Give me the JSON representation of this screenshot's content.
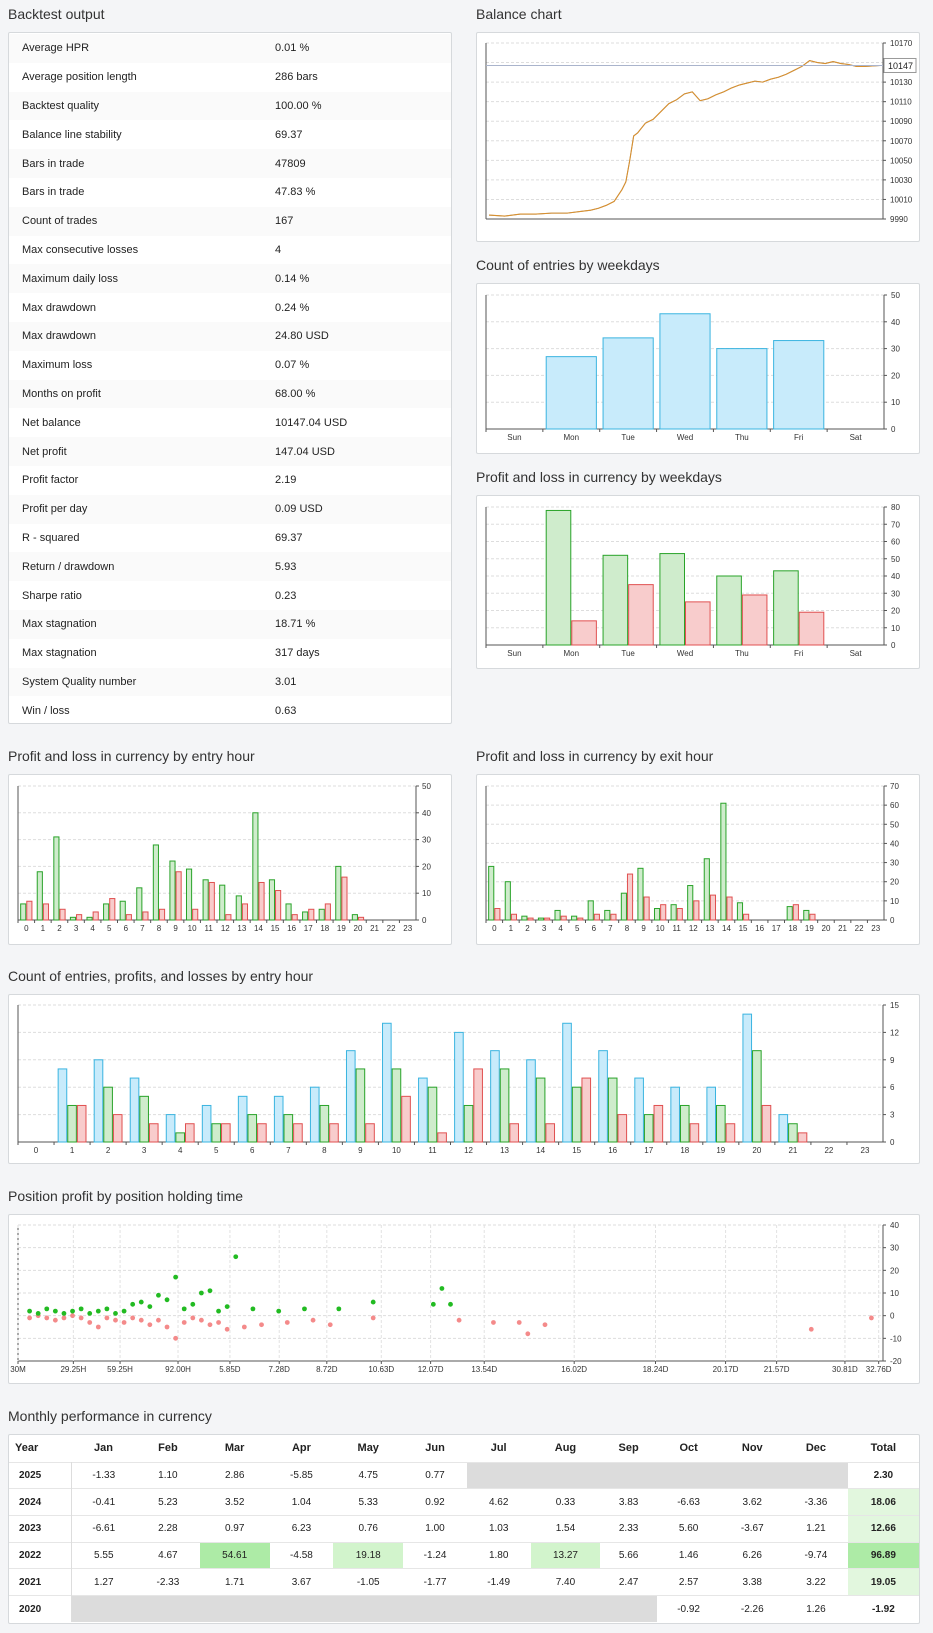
{
  "sections": {
    "backtest_output": "Backtest output",
    "balance_chart": "Balance chart",
    "entries_weekdays": "Count of entries by weekdays",
    "pl_weekdays": "Profit and loss in currency by weekdays",
    "pl_entry_hour": "Profit and loss in currency by entry hour",
    "pl_exit_hour": "Profit and loss in currency by exit hour",
    "count_entry_hour": "Count of entries, profits, and losses by entry hour",
    "position_profit": "Position profit by position holding time",
    "monthly": "Monthly performance in currency"
  },
  "stats": [
    {
      "label": "Average HPR",
      "value": "0.01 %"
    },
    {
      "label": "Average position length",
      "value": "286 bars"
    },
    {
      "label": "Backtest quality",
      "value": "100.00 %"
    },
    {
      "label": "Balance line stability",
      "value": "69.37"
    },
    {
      "label": "Bars in trade",
      "value": "47809"
    },
    {
      "label": "Bars in trade",
      "value": "47.83 %"
    },
    {
      "label": "Count of trades",
      "value": "167"
    },
    {
      "label": "Max consecutive losses",
      "value": "4"
    },
    {
      "label": "Maximum daily loss",
      "value": "0.14 %"
    },
    {
      "label": "Max drawdown",
      "value": "0.24 %"
    },
    {
      "label": "Max drawdown",
      "value": "24.80 USD"
    },
    {
      "label": "Maximum loss",
      "value": "0.07 %"
    },
    {
      "label": "Months on profit",
      "value": "68.00 %"
    },
    {
      "label": "Net balance",
      "value": "10147.04 USD"
    },
    {
      "label": "Net profit",
      "value": "147.04 USD"
    },
    {
      "label": "Profit factor",
      "value": "2.19"
    },
    {
      "label": "Profit per day",
      "value": "0.09 USD"
    },
    {
      "label": "R - squared",
      "value": "69.37"
    },
    {
      "label": "Return / drawdown",
      "value": "5.93"
    },
    {
      "label": "Sharpe ratio",
      "value": "0.23"
    },
    {
      "label": "Max stagnation",
      "value": "18.71 %"
    },
    {
      "label": "Max stagnation",
      "value": "317 days"
    },
    {
      "label": "System Quality number",
      "value": "3.01"
    },
    {
      "label": "Win / loss",
      "value": "0.63"
    }
  ],
  "colors": {
    "blue_fill": "#c8ebfb",
    "blue_stroke": "#3ab4e0",
    "green_fill": "#cfeccc",
    "green_stroke": "#29a329",
    "red_fill": "#f8cccc",
    "red_stroke": "#e05050",
    "win_dot": "#22bb22",
    "loss_dot": "#f48a8a",
    "balance_line": "#d8902f"
  },
  "chart_data": [
    {
      "id": "balance",
      "type": "line",
      "ylim": [
        9990,
        10170
      ],
      "yticks": [
        "10170",
        "10150",
        "10130",
        "10110",
        "10090",
        "10070",
        "10050",
        "10030",
        "10010",
        "9990"
      ],
      "last_value_label": "10147",
      "points": [
        [
          0,
          9994
        ],
        [
          0.04,
          9993
        ],
        [
          0.08,
          9995
        ],
        [
          0.12,
          9995
        ],
        [
          0.16,
          9996
        ],
        [
          0.2,
          9996
        ],
        [
          0.24,
          9998
        ],
        [
          0.26,
          9999
        ],
        [
          0.28,
          10001
        ],
        [
          0.3,
          10004
        ],
        [
          0.32,
          10008
        ],
        [
          0.33,
          10014
        ],
        [
          0.34,
          10020
        ],
        [
          0.35,
          10028
        ],
        [
          0.36,
          10050
        ],
        [
          0.37,
          10075
        ],
        [
          0.38,
          10078
        ],
        [
          0.39,
          10083
        ],
        [
          0.4,
          10088
        ],
        [
          0.42,
          10092
        ],
        [
          0.44,
          10100
        ],
        [
          0.46,
          10108
        ],
        [
          0.48,
          10112
        ],
        [
          0.5,
          10118
        ],
        [
          0.52,
          10120
        ],
        [
          0.54,
          10111
        ],
        [
          0.56,
          10113
        ],
        [
          0.58,
          10117
        ],
        [
          0.6,
          10120
        ],
        [
          0.62,
          10124
        ],
        [
          0.64,
          10127
        ],
        [
          0.66,
          10129
        ],
        [
          0.68,
          10131
        ],
        [
          0.7,
          10130
        ],
        [
          0.72,
          10133
        ],
        [
          0.74,
          10135
        ],
        [
          0.76,
          10138
        ],
        [
          0.78,
          10142
        ],
        [
          0.8,
          10146
        ],
        [
          0.82,
          10152
        ],
        [
          0.84,
          10150
        ],
        [
          0.86,
          10149
        ],
        [
          0.88,
          10151
        ],
        [
          0.9,
          10149
        ],
        [
          0.92,
          10148
        ],
        [
          0.94,
          10146
        ],
        [
          0.96,
          10146
        ],
        [
          1,
          10147
        ]
      ]
    },
    {
      "id": "entries_weekdays",
      "type": "bar",
      "categories": [
        "Sun",
        "Mon",
        "Tue",
        "Wed",
        "Thu",
        "Fri",
        "Sat"
      ],
      "values": [
        0,
        27,
        34,
        43,
        30,
        33,
        0
      ],
      "ylim": [
        0,
        50
      ],
      "yticks": [
        "0",
        "10",
        "20",
        "30",
        "40",
        "50"
      ]
    },
    {
      "id": "pl_weekdays",
      "type": "bar",
      "categories": [
        "Sun",
        "Mon",
        "Tue",
        "Wed",
        "Thu",
        "Fri",
        "Sat"
      ],
      "series": [
        {
          "values": [
            0,
            78,
            52,
            53,
            40,
            43,
            0
          ]
        },
        {
          "values": [
            0,
            14,
            35,
            25,
            29,
            19,
            0
          ]
        }
      ],
      "ylim": [
        0,
        80
      ],
      "yticks": [
        "0",
        "10",
        "20",
        "30",
        "40",
        "50",
        "60",
        "70",
        "80"
      ]
    },
    {
      "id": "pl_entry_hour",
      "type": "bar",
      "categories": [
        "0",
        "1",
        "2",
        "3",
        "4",
        "5",
        "6",
        "7",
        "8",
        "9",
        "10",
        "11",
        "12",
        "13",
        "14",
        "15",
        "16",
        "17",
        "18",
        "19",
        "20",
        "21",
        "22",
        "23"
      ],
      "series": [
        {
          "values": [
            6,
            18,
            31,
            1,
            1,
            6,
            7,
            12,
            28,
            22,
            19,
            15,
            13,
            9,
            40,
            15,
            6,
            3,
            4,
            20,
            2,
            0,
            0,
            0
          ]
        },
        {
          "values": [
            7,
            6,
            4,
            2,
            3,
            8,
            2,
            3,
            4,
            18,
            4,
            14,
            2,
            6,
            14,
            11,
            2,
            4,
            6,
            16,
            1,
            0,
            0,
            0
          ]
        }
      ],
      "ylim": [
        0,
        50
      ],
      "yticks": [
        "0",
        "10",
        "20",
        "30",
        "40",
        "50"
      ]
    },
    {
      "id": "pl_exit_hour",
      "type": "bar",
      "categories": [
        "0",
        "1",
        "2",
        "3",
        "4",
        "5",
        "6",
        "7",
        "8",
        "9",
        "10",
        "11",
        "12",
        "13",
        "14",
        "15",
        "16",
        "17",
        "18",
        "19",
        "20",
        "21",
        "22",
        "23"
      ],
      "series": [
        {
          "values": [
            28,
            20,
            2,
            1,
            5,
            2,
            10,
            5,
            14,
            27,
            6,
            8,
            18,
            32,
            61,
            9,
            0,
            0,
            7,
            5,
            0,
            0,
            0,
            0
          ]
        },
        {
          "values": [
            6,
            3,
            1,
            1,
            2,
            1,
            3,
            3,
            24,
            12,
            8,
            6,
            10,
            13,
            12,
            3,
            0,
            0,
            8,
            3,
            0,
            0,
            0,
            0
          ]
        }
      ],
      "ylim": [
        0,
        70
      ],
      "yticks": [
        "0",
        "10",
        "20",
        "30",
        "40",
        "50",
        "60",
        "70"
      ]
    },
    {
      "id": "count_entry_hour",
      "type": "bar",
      "categories": [
        "0",
        "1",
        "2",
        "3",
        "4",
        "5",
        "6",
        "7",
        "8",
        "9",
        "10",
        "11",
        "12",
        "13",
        "14",
        "15",
        "16",
        "17",
        "18",
        "19",
        "20",
        "21",
        "22",
        "23"
      ],
      "series": [
        {
          "values": [
            0,
            8,
            9,
            7,
            3,
            4,
            5,
            5,
            6,
            10,
            13,
            7,
            12,
            10,
            9,
            13,
            10,
            7,
            6,
            6,
            14,
            3,
            0,
            0
          ]
        },
        {
          "values": [
            0,
            4,
            6,
            5,
            1,
            2,
            3,
            3,
            4,
            8,
            8,
            6,
            4,
            8,
            7,
            6,
            7,
            3,
            4,
            4,
            10,
            2,
            0,
            0
          ]
        },
        {
          "values": [
            0,
            4,
            3,
            2,
            2,
            2,
            2,
            2,
            2,
            2,
            5,
            1,
            8,
            2,
            2,
            7,
            3,
            4,
            2,
            2,
            4,
            1,
            0,
            0
          ]
        }
      ],
      "ylim": [
        0,
        15
      ],
      "yticks": [
        "0",
        "3",
        "6",
        "9",
        "12",
        "15"
      ]
    },
    {
      "id": "position_profit",
      "type": "scatter",
      "ylim": [
        -20,
        40
      ],
      "yticks": [
        "-20",
        "-10",
        "0",
        "10",
        "20",
        "30",
        "40"
      ],
      "xticks": [
        "30M",
        "29.25H",
        "59.25H",
        "92.00H",
        "5.85D",
        "7.28D",
        "8.72D",
        "10.63D",
        "12.07D",
        "13.54D",
        "16.02D",
        "18.24D",
        "20.17D",
        "21.57D",
        "30.81D",
        "32.76D"
      ],
      "wins": [
        [
          0.01,
          2
        ],
        [
          0.02,
          1
        ],
        [
          0.03,
          3
        ],
        [
          0.04,
          2
        ],
        [
          0.05,
          1
        ],
        [
          0.06,
          2
        ],
        [
          0.07,
          3
        ],
        [
          0.08,
          1
        ],
        [
          0.09,
          2
        ],
        [
          0.1,
          3
        ],
        [
          0.11,
          1
        ],
        [
          0.12,
          2
        ],
        [
          0.13,
          5
        ],
        [
          0.14,
          6
        ],
        [
          0.15,
          4
        ],
        [
          0.16,
          9
        ],
        [
          0.17,
          7
        ],
        [
          0.18,
          17
        ],
        [
          0.19,
          3
        ],
        [
          0.2,
          5
        ],
        [
          0.21,
          10
        ],
        [
          0.22,
          11
        ],
        [
          0.23,
          2
        ],
        [
          0.24,
          4
        ],
        [
          0.25,
          26
        ],
        [
          0.27,
          3
        ],
        [
          0.3,
          2
        ],
        [
          0.33,
          3
        ],
        [
          0.37,
          3
        ],
        [
          0.41,
          6
        ],
        [
          0.48,
          5
        ],
        [
          0.49,
          12
        ],
        [
          0.5,
          5
        ]
      ],
      "losses": [
        [
          0.01,
          -1
        ],
        [
          0.02,
          0
        ],
        [
          0.03,
          -1
        ],
        [
          0.04,
          -2
        ],
        [
          0.05,
          -1
        ],
        [
          0.06,
          0
        ],
        [
          0.07,
          -1
        ],
        [
          0.08,
          -3
        ],
        [
          0.09,
          -5
        ],
        [
          0.1,
          -1
        ],
        [
          0.11,
          -2
        ],
        [
          0.12,
          -3
        ],
        [
          0.13,
          -1
        ],
        [
          0.14,
          -2
        ],
        [
          0.15,
          -4
        ],
        [
          0.16,
          -2
        ],
        [
          0.17,
          -5
        ],
        [
          0.18,
          -10
        ],
        [
          0.19,
          -3
        ],
        [
          0.2,
          -1
        ],
        [
          0.21,
          -2
        ],
        [
          0.22,
          -4
        ],
        [
          0.23,
          -3
        ],
        [
          0.24,
          -6
        ],
        [
          0.26,
          -5
        ],
        [
          0.28,
          -4
        ],
        [
          0.31,
          -3
        ],
        [
          0.34,
          -2
        ],
        [
          0.36,
          -4
        ],
        [
          0.41,
          -1
        ],
        [
          0.51,
          -2
        ],
        [
          0.55,
          -3
        ],
        [
          0.58,
          -3
        ],
        [
          0.59,
          -8
        ],
        [
          0.61,
          -4
        ],
        [
          0.92,
          -6
        ],
        [
          0.99,
          -1
        ]
      ]
    }
  ],
  "monthly": {
    "headers": [
      "Year",
      "Jan",
      "Feb",
      "Mar",
      "Apr",
      "May",
      "Jun",
      "Jul",
      "Aug",
      "Sep",
      "Oct",
      "Nov",
      "Dec",
      "Total"
    ],
    "rows": [
      {
        "year": "2025",
        "cells": [
          "-1.33",
          "1.10",
          "2.86",
          "-5.85",
          "4.75",
          "0.77",
          "",
          "",
          "",
          "",
          "",
          ""
        ],
        "total": "2.30"
      },
      {
        "year": "2024",
        "cells": [
          "-0.41",
          "5.23",
          "3.52",
          "1.04",
          "5.33",
          "0.92",
          "4.62",
          "0.33",
          "3.83",
          "-6.63",
          "3.62",
          "-3.36"
        ],
        "total": "18.06"
      },
      {
        "year": "2023",
        "cells": [
          "-6.61",
          "2.28",
          "0.97",
          "6.23",
          "0.76",
          "1.00",
          "1.03",
          "1.54",
          "2.33",
          "5.60",
          "-3.67",
          "1.21"
        ],
        "total": "12.66"
      },
      {
        "year": "2022",
        "cells": [
          "5.55",
          "4.67",
          "54.61",
          "-4.58",
          "19.18",
          "-1.24",
          "1.80",
          "13.27",
          "5.66",
          "1.46",
          "6.26",
          "-9.74"
        ],
        "total": "96.89"
      },
      {
        "year": "2021",
        "cells": [
          "1.27",
          "-2.33",
          "1.71",
          "3.67",
          "-1.05",
          "-1.77",
          "-1.49",
          "7.40",
          "2.47",
          "2.57",
          "3.38",
          "3.22"
        ],
        "total": "19.05"
      },
      {
        "year": "2020",
        "cells": [
          "",
          "",
          "",
          "",
          "",
          "",
          "",
          "",
          "",
          "-0.92",
          "-2.26",
          "1.26"
        ],
        "total": "-1.92"
      }
    ]
  }
}
